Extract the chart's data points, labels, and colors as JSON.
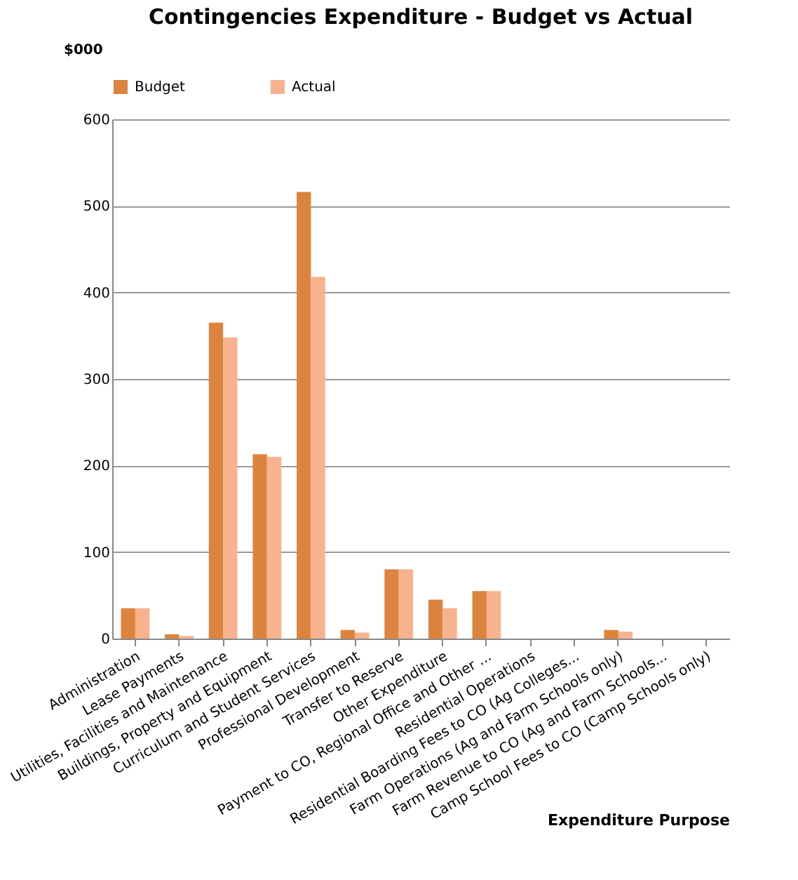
{
  "chart_data": {
    "type": "bar",
    "title": "Contingencies Expenditure - Budget vs Actual",
    "ylabel": "$000",
    "xlabel": "Expenditure Purpose",
    "categories": [
      "Administration",
      "Lease Payments",
      "Utilities, Facilities and Maintenance",
      "Buildings, Property and Equipment",
      "Curriculum and Student Services",
      "Professional Development",
      "Transfer to Reserve",
      "Other Expenditure",
      "Payment to CO, Regional Office and Other ...",
      "Residential Operations",
      "Residential Boarding Fees to CO (Ag Colleges...",
      "Farm Operations (Ag and Farm Schools only)",
      "Farm Revenue to CO (Ag and Farm Schools...",
      "Camp School Fees to CO (Camp Schools only)"
    ],
    "series": [
      {
        "name": "Budget",
        "color": "#dc843e",
        "values": [
          35,
          5,
          365,
          213,
          516,
          10,
          80,
          45,
          55,
          0,
          0,
          10,
          0,
          0
        ]
      },
      {
        "name": "Actual",
        "color": "#f8b38e",
        "values": [
          35,
          3,
          348,
          210,
          418,
          7,
          80,
          35,
          55,
          0,
          0,
          8,
          0,
          0
        ]
      }
    ],
    "ylim": [
      0,
      600
    ],
    "yticks": [
      0,
      100,
      200,
      300,
      400,
      500,
      600
    ],
    "grid": "y",
    "legend": "top"
  }
}
